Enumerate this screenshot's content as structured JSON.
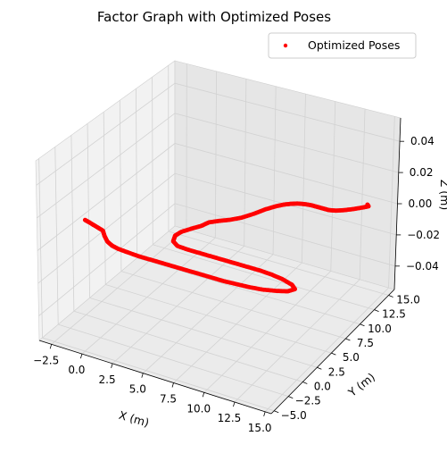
{
  "chart_data": {
    "type": "scatter",
    "projection": "3d",
    "title": "Factor Graph with Optimized Poses",
    "xlabel": "X (m)",
    "ylabel": "Y (m)",
    "zlabel": "Z (m)",
    "xlim": [
      -3.5,
      15.5
    ],
    "ylim": [
      -5.5,
      16
    ],
    "zlim": [
      -0.055,
      0.055
    ],
    "xticks": [
      "−2.5",
      "0.0",
      "2.5",
      "5.0",
      "7.5",
      "10.0",
      "12.5",
      "15.0"
    ],
    "yticks": [
      "−5.0",
      "−2.5",
      "0.0",
      "2.5",
      "5.0",
      "7.5",
      "10.0",
      "12.5",
      "15.0"
    ],
    "zticks": [
      "−0.04",
      "−0.02",
      "0.00",
      "0.02",
      "0.04"
    ],
    "grid": true,
    "legend": {
      "position": "top-right",
      "entries": [
        "Optimized Poses"
      ]
    },
    "series": [
      {
        "name": "Optimized Poses",
        "color": "#ff0000",
        "marker": "point",
        "x": [
          -3.0,
          -2.5,
          -1.8,
          -1.1,
          -0.6,
          0.0,
          0.6,
          1.2,
          2.0,
          3.0,
          4.0,
          5.0,
          6.0,
          7.0,
          8.0,
          9.0,
          10.0,
          11.0,
          12.0,
          13.0,
          14.0,
          14.7,
          15.0,
          14.5,
          13.5,
          12.5,
          11.5,
          10.5,
          9.5,
          8.5,
          7.5,
          6.5,
          5.5,
          4.6,
          4.0,
          3.7,
          3.8,
          4.2,
          4.6,
          4.8,
          5.3,
          5.9,
          6.5,
          7.0,
          7.4,
          7.8,
          8.2,
          8.6,
          9.0,
          9.5,
          10.0,
          10.5,
          11.0,
          11.5,
          12.0,
          12.5,
          13.0,
          13.5,
          13.8,
          13.6
        ],
        "y": [
          1.0,
          0.8,
          0.5,
          0.2,
          -0.5,
          -1.2,
          -1.6,
          -1.8,
          -1.9,
          -2.0,
          -2.0,
          -2.0,
          -2.0,
          -2.0,
          -2.0,
          -2.0,
          -2.0,
          -1.9,
          -1.8,
          -1.6,
          -1.2,
          -0.8,
          -0.2,
          0.3,
          0.7,
          0.9,
          1.0,
          1.0,
          1.0,
          1.0,
          1.0,
          1.0,
          1.0,
          1.1,
          1.6,
          2.5,
          3.3,
          4.2,
          5.0,
          5.8,
          6.4,
          7.0,
          7.8,
          8.9,
          10.0,
          10.8,
          11.4,
          11.8,
          12.1,
          12.3,
          12.4,
          12.4,
          12.4,
          12.4,
          12.6,
          13.0,
          13.5,
          14.1,
          14.5,
          14.7
        ],
        "z": 0.0
      }
    ]
  }
}
